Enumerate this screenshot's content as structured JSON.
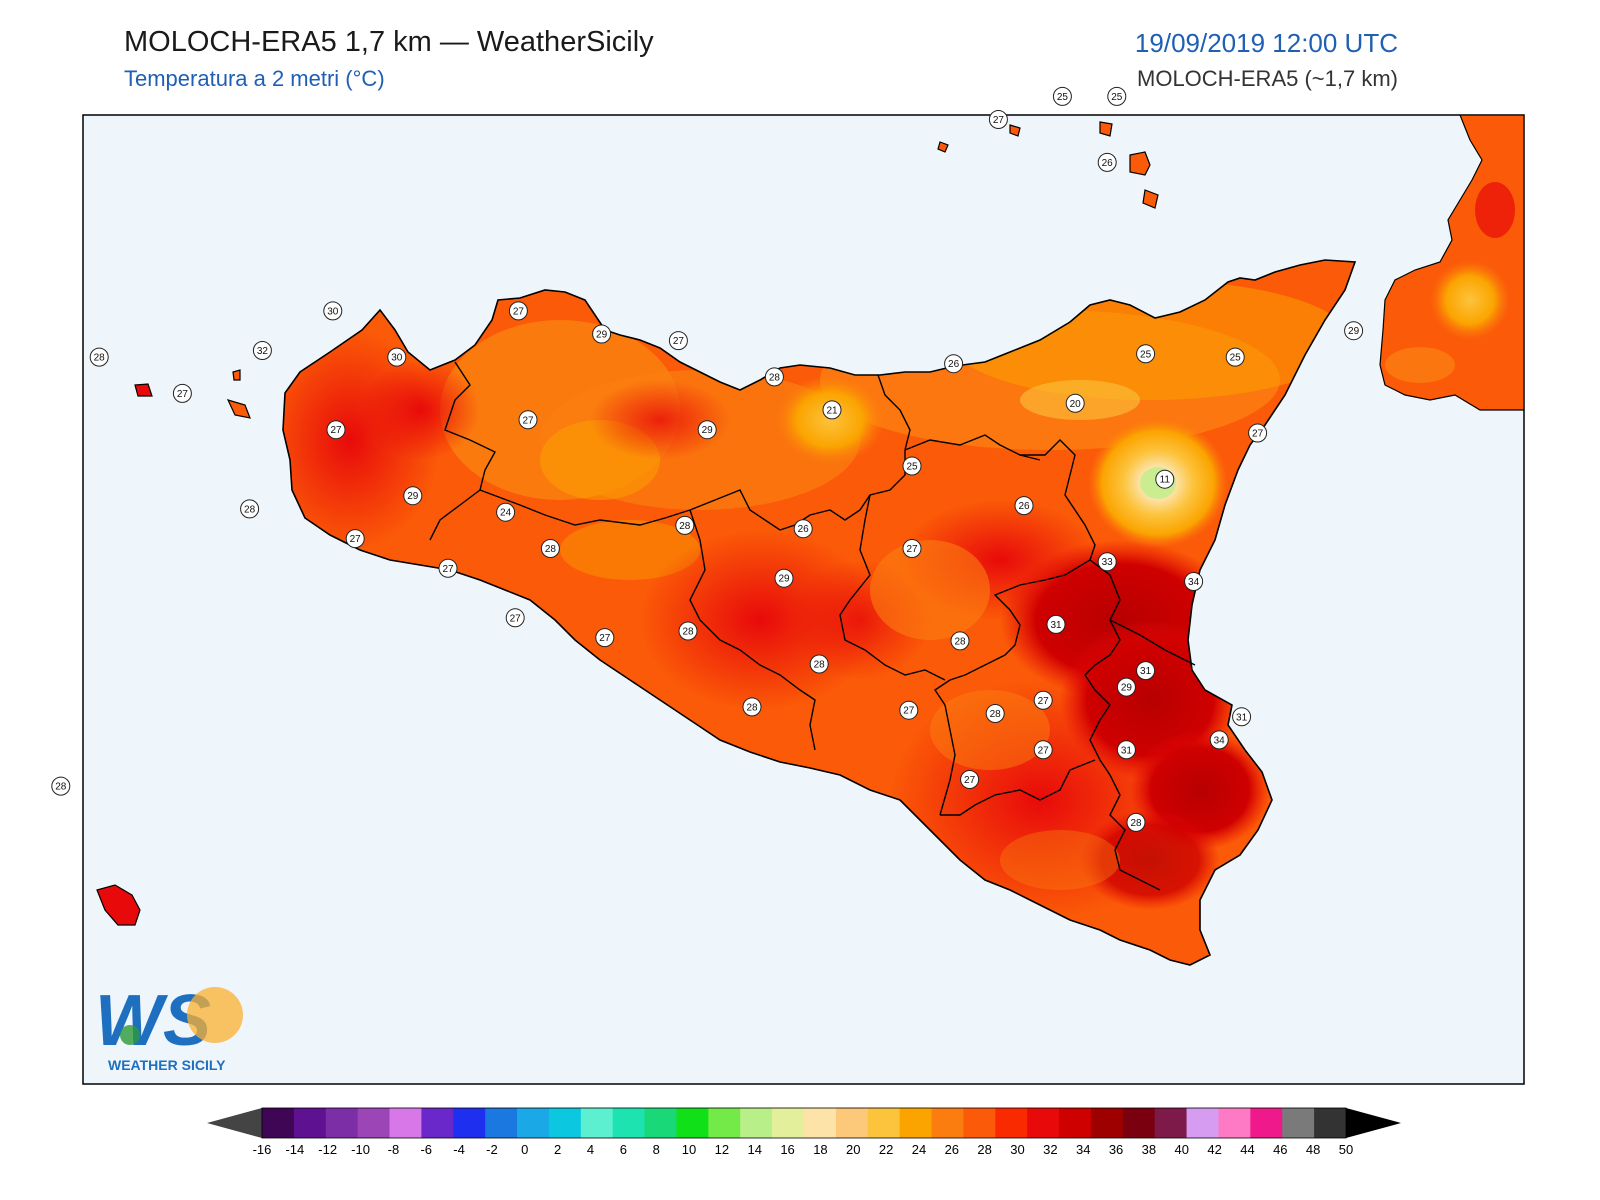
{
  "header": {
    "title": "MOLOCH-ERA5 1,7 km — WeatherSicily",
    "subtitle": "Temperatura a 2 metri (°C)",
    "datetime": "19/09/2019 12:00 UTC",
    "model": "MOLOCH-ERA5 (~1,7 km)"
  },
  "logo": {
    "mark": "WS",
    "name": "WEATHER SICILY"
  },
  "colorbar": {
    "ticks": [
      "-16",
      "-14",
      "-12",
      "-10",
      "-8",
      "-6",
      "-4",
      "-2",
      "0",
      "2",
      "4",
      "6",
      "8",
      "10",
      "12",
      "14",
      "16",
      "18",
      "20",
      "22",
      "24",
      "26",
      "28",
      "30",
      "32",
      "34",
      "36",
      "38",
      "40",
      "42",
      "44",
      "46",
      "48",
      "50"
    ],
    "colors": [
      "#3e0654",
      "#5e1190",
      "#7b2ea6",
      "#9b45b7",
      "#d877e8",
      "#6a27c9",
      "#1f2ff0",
      "#1a78e0",
      "#1aa8e6",
      "#0bc8e0",
      "#5cf0d0",
      "#1ce3b0",
      "#18d878",
      "#10e018",
      "#74ea48",
      "#b8ef88",
      "#e4ef9c",
      "#fde3a8",
      "#fcc87a",
      "#fcc33c",
      "#fba400",
      "#fb7d10",
      "#fb5a08",
      "#fa2a00",
      "#e80a0a",
      "#cf0000",
      "#9e0000",
      "#7a0010",
      "#7e1a4a",
      "#d69cf2",
      "#ff7ac4",
      "#f0198c",
      "#7a7a7a",
      "#333333"
    ],
    "min_arrow_color": "#444444",
    "max_arrow_color": "#000000"
  },
  "station_labels": [
    {
      "value": "27",
      "lon": 14.87,
      "lat": 38.85
    },
    {
      "value": "25",
      "lon": 15.07,
      "lat": 38.92
    },
    {
      "value": "25",
      "lon": 15.24,
      "lat": 38.92
    },
    {
      "value": "26",
      "lon": 15.21,
      "lat": 38.72
    },
    {
      "value": "28",
      "lon": 12.06,
      "lat": 38.13
    },
    {
      "value": "27",
      "lon": 12.32,
      "lat": 38.02
    },
    {
      "value": "30",
      "lon": 12.79,
      "lat": 38.27
    },
    {
      "value": "32",
      "lon": 12.57,
      "lat": 38.15
    },
    {
      "value": "30",
      "lon": 12.99,
      "lat": 38.13
    },
    {
      "value": "27",
      "lon": 13.37,
      "lat": 38.27
    },
    {
      "value": "29",
      "lon": 13.63,
      "lat": 38.2
    },
    {
      "value": "27",
      "lon": 13.87,
      "lat": 38.18
    },
    {
      "value": "28",
      "lon": 14.17,
      "lat": 38.07
    },
    {
      "value": "26",
      "lon": 14.73,
      "lat": 38.11
    },
    {
      "value": "25",
      "lon": 15.33,
      "lat": 38.14
    },
    {
      "value": "25",
      "lon": 15.61,
      "lat": 38.13
    },
    {
      "value": "29",
      "lon": 15.98,
      "lat": 38.21
    },
    {
      "value": "20",
      "lon": 15.11,
      "lat": 37.99
    },
    {
      "value": "27",
      "lon": 15.68,
      "lat": 37.9
    },
    {
      "value": "11",
      "lon": 15.39,
      "lat": 37.76
    },
    {
      "value": "27",
      "lon": 12.8,
      "lat": 37.91
    },
    {
      "value": "27",
      "lon": 13.4,
      "lat": 37.94
    },
    {
      "value": "29",
      "lon": 13.96,
      "lat": 37.91
    },
    {
      "value": "21",
      "lon": 14.35,
      "lat": 37.97
    },
    {
      "value": "25",
      "lon": 14.6,
      "lat": 37.8
    },
    {
      "value": "28",
      "lon": 12.53,
      "lat": 37.67
    },
    {
      "value": "29",
      "lon": 13.04,
      "lat": 37.71
    },
    {
      "value": "26",
      "lon": 14.26,
      "lat": 37.61
    },
    {
      "value": "24",
      "lon": 13.33,
      "lat": 37.66
    },
    {
      "value": "26",
      "lon": 14.95,
      "lat": 37.68
    },
    {
      "value": "27",
      "lon": 12.86,
      "lat": 37.58
    },
    {
      "value": "28",
      "lon": 13.89,
      "lat": 37.62
    },
    {
      "value": "28",
      "lon": 13.47,
      "lat": 37.55
    },
    {
      "value": "27",
      "lon": 14.6,
      "lat": 37.55
    },
    {
      "value": "33",
      "lon": 15.21,
      "lat": 37.51
    },
    {
      "value": "27",
      "lon": 13.15,
      "lat": 37.49
    },
    {
      "value": "29",
      "lon": 14.2,
      "lat": 37.46
    },
    {
      "value": "34",
      "lon": 15.48,
      "lat": 37.45
    },
    {
      "value": "27",
      "lon": 13.36,
      "lat": 37.34
    },
    {
      "value": "31",
      "lon": 15.05,
      "lat": 37.32
    },
    {
      "value": "27",
      "lon": 13.64,
      "lat": 37.28
    },
    {
      "value": "28",
      "lon": 13.9,
      "lat": 37.3
    },
    {
      "value": "28",
      "lon": 14.75,
      "lat": 37.27
    },
    {
      "value": "31",
      "lon": 15.33,
      "lat": 37.18
    },
    {
      "value": "28",
      "lon": 14.31,
      "lat": 37.2
    },
    {
      "value": "29",
      "lon": 15.27,
      "lat": 37.13
    },
    {
      "value": "27",
      "lon": 15.01,
      "lat": 37.09
    },
    {
      "value": "28",
      "lon": 14.1,
      "lat": 37.07
    },
    {
      "value": "27",
      "lon": 14.59,
      "lat": 37.06
    },
    {
      "value": "28",
      "lon": 14.86,
      "lat": 37.05
    },
    {
      "value": "31",
      "lon": 15.63,
      "lat": 37.04
    },
    {
      "value": "34",
      "lon": 15.56,
      "lat": 36.97
    },
    {
      "value": "27",
      "lon": 15.01,
      "lat": 36.94
    },
    {
      "value": "31",
      "lon": 15.27,
      "lat": 36.94
    },
    {
      "value": "27",
      "lon": 14.78,
      "lat": 36.85
    },
    {
      "value": "28",
      "lon": 11.94,
      "lat": 36.83
    },
    {
      "value": "28",
      "lon": 15.3,
      "lat": 36.72
    }
  ]
}
